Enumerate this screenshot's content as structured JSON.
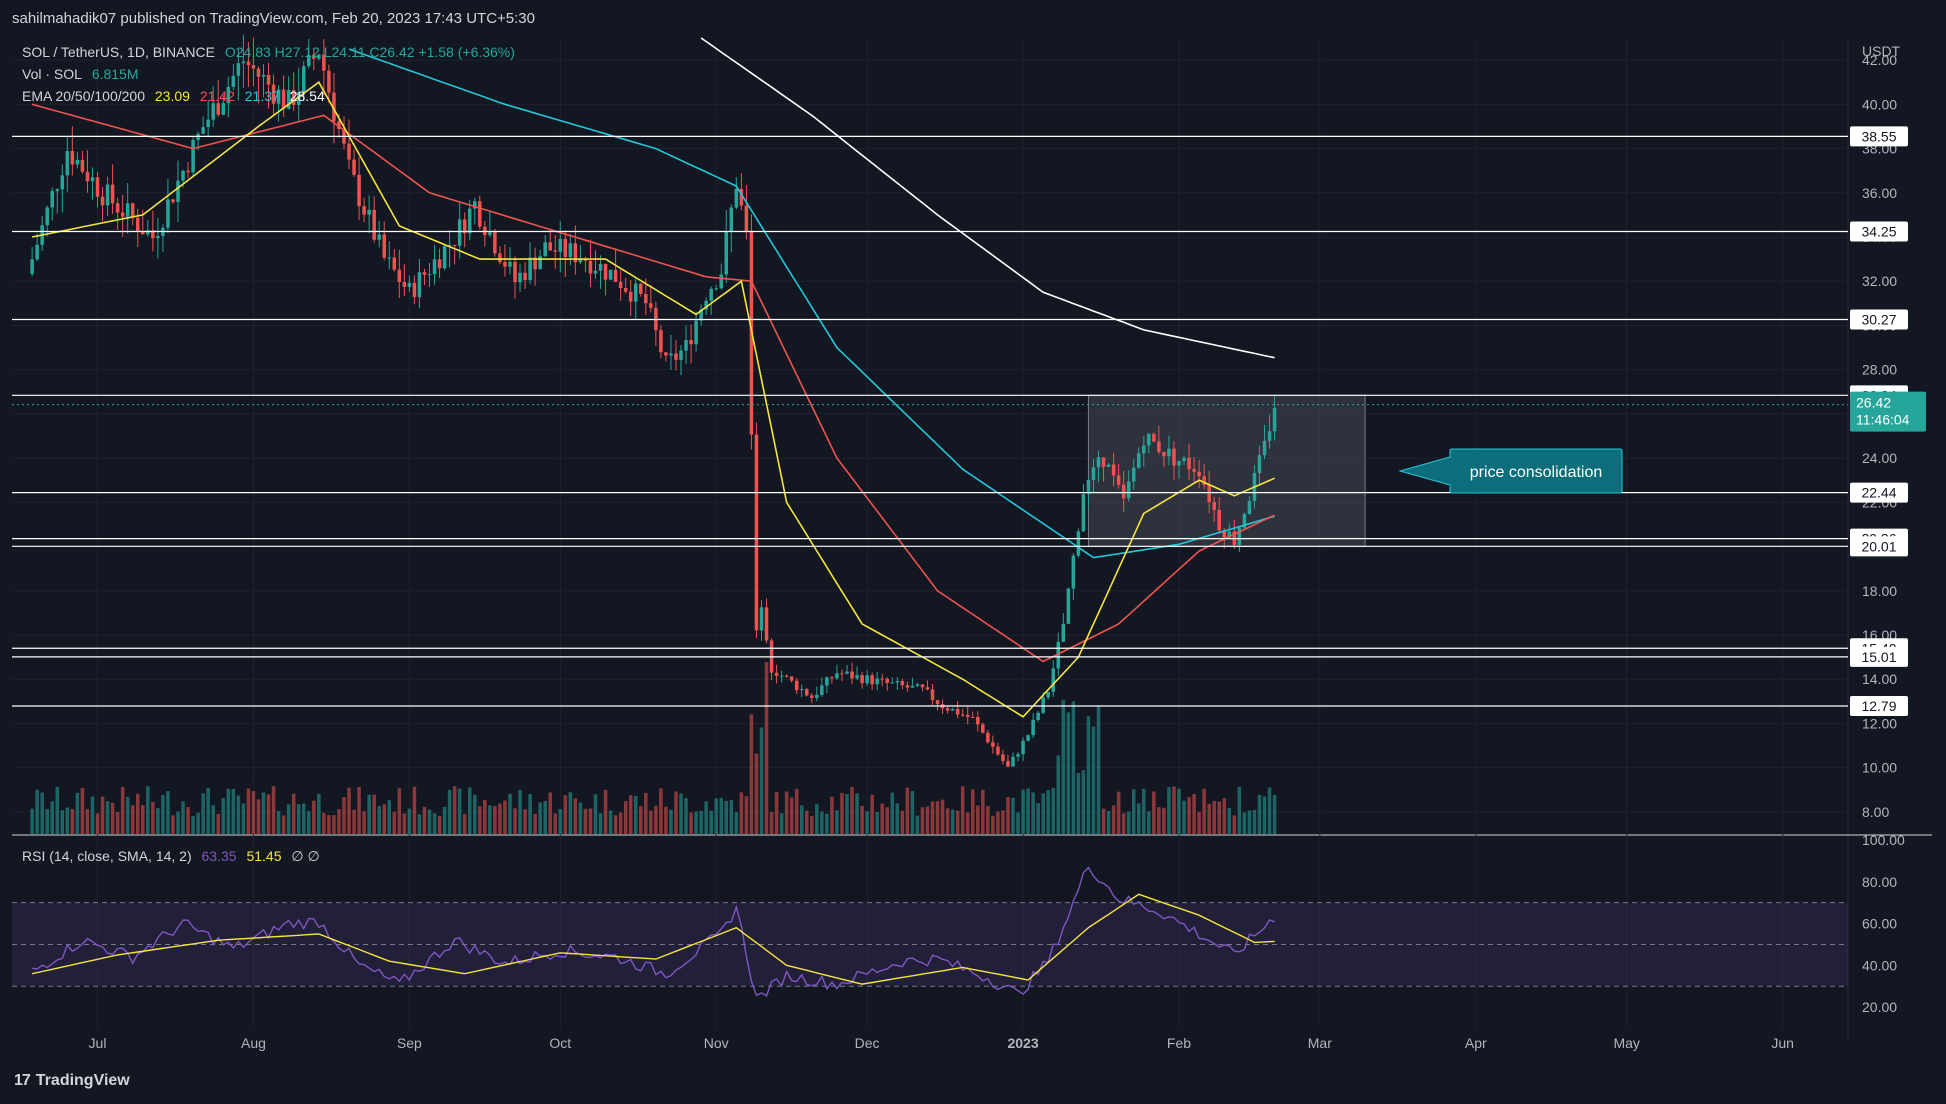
{
  "header": {
    "publisher": "sahilmahadik07 published on TradingView.com, Feb 20, 2023 17:43 UTC+5:30"
  },
  "footer": {
    "logo_text": "TradingView",
    "logo_mark": "17"
  },
  "legend": {
    "symbol": "SOL / TetherUS, 1D, BINANCE",
    "ohlc": "O24.83 H27.12 L24.11 C26.42 +1.58 (+6.36%)",
    "volume_label": "Vol · SOL",
    "volume_value": "6.815M",
    "ema_label": "EMA 20/50/100/200",
    "ema_values": [
      {
        "value": "23.09",
        "color": "#f5e53c"
      },
      {
        "value": "21.42",
        "color": "#ef5350"
      },
      {
        "value": "21.37",
        "color": "#26c6da"
      },
      {
        "value": "28.54",
        "color": "#ffffff"
      }
    ],
    "rsi_label": "RSI (14, close, SMA, 14, 2)",
    "rsi_value": "63.35",
    "rsi_sma": "51.45",
    "rsi_extra": "∅  ∅"
  },
  "colors": {
    "up": "#26a69a",
    "down": "#ef5350",
    "bg": "#131722",
    "grid": "#1e222d",
    "ema20": "#f5e53c",
    "ema50": "#ef5350",
    "ema100": "#26c6da",
    "ema200": "#ffffff",
    "rsi": "#7e57c2",
    "rsi_sma": "#f5e53c",
    "accent": "#0b6e7a"
  },
  "annotation": {
    "text": "price consolidation"
  },
  "chart_data": [
    {
      "type": "candlestick",
      "title": "SOL / TetherUS, 1D, BINANCE",
      "y_unit": "USDT",
      "ylim": [
        7,
        43
      ],
      "y_ticks": [
        "8.00",
        "10.00",
        "12.00",
        "14.00",
        "16.00",
        "18.00",
        "20.00",
        "22.00",
        "24.00",
        "26.00",
        "28.00",
        "30.00",
        "32.00",
        "34.00",
        "36.00",
        "38.00",
        "40.00",
        "42.00"
      ],
      "x_ticks": [
        "Jul",
        "Aug",
        "Sep",
        "Oct",
        "Nov",
        "Dec",
        "2023",
        "Feb",
        "Mar",
        "Apr",
        "May",
        "Jun"
      ],
      "horizontal_levels": [
        "38.55",
        "34.25",
        "30.27",
        "26.84",
        "22.44",
        "20.36",
        "20.01",
        "15.40",
        "15.01",
        "12.79"
      ],
      "last_price": "26.42",
      "countdown": "11:46:04",
      "consolidation_box": {
        "x_start": "2023-01-14",
        "x_end": "2023-03-10",
        "y_low": 20.0,
        "y_high": 26.84
      },
      "price_keypoints": [
        [
          "2022-06-18",
          33
        ],
        [
          "2022-06-25",
          38
        ],
        [
          "2022-07-02",
          36
        ],
        [
          "2022-07-12",
          34
        ],
        [
          "2022-07-22",
          39
        ],
        [
          "2022-07-30",
          42
        ],
        [
          "2022-08-08",
          40
        ],
        [
          "2022-08-14",
          42.5
        ],
        [
          "2022-08-20",
          37
        ],
        [
          "2022-08-27",
          33
        ],
        [
          "2022-09-01",
          31.5
        ],
        [
          "2022-09-10",
          34
        ],
        [
          "2022-09-14",
          35.5
        ],
        [
          "2022-09-22",
          32
        ],
        [
          "2022-09-28",
          33.5
        ],
        [
          "2022-10-05",
          33.2
        ],
        [
          "2022-10-12",
          32.2
        ],
        [
          "2022-10-18",
          31
        ],
        [
          "2022-10-22",
          28.2
        ],
        [
          "2022-10-26",
          29
        ],
        [
          "2022-10-30",
          31.5
        ],
        [
          "2022-11-02",
          32.5
        ],
        [
          "2022-11-05",
          36.5
        ],
        [
          "2022-11-07",
          34
        ],
        [
          "2022-11-08",
          25
        ],
        [
          "2022-11-09",
          16
        ],
        [
          "2022-11-10",
          17.5
        ],
        [
          "2022-11-12",
          14.5
        ],
        [
          "2022-11-20",
          13.2
        ],
        [
          "2022-11-25",
          14.3
        ],
        [
          "2022-12-05",
          13.8
        ],
        [
          "2022-12-12",
          13.5
        ],
        [
          "2022-12-16",
          12.8
        ],
        [
          "2022-12-22",
          12.2
        ],
        [
          "2022-12-29",
          10
        ],
        [
          "2023-01-02",
          11.5
        ],
        [
          "2023-01-06",
          13.5
        ],
        [
          "2023-01-09",
          16.5
        ],
        [
          "2023-01-13",
          22.5
        ],
        [
          "2023-01-17",
          24
        ],
        [
          "2023-01-21",
          22
        ],
        [
          "2023-01-25",
          25
        ],
        [
          "2023-01-31",
          24
        ],
        [
          "2023-02-05",
          23.5
        ],
        [
          "2023-02-09",
          21
        ],
        [
          "2023-02-12",
          20.3
        ],
        [
          "2023-02-15",
          22.3
        ],
        [
          "2023-02-18",
          24.5
        ],
        [
          "2023-02-20",
          26.42
        ]
      ],
      "ema_keypoints": {
        "ema20": [
          [
            "2022-06-18",
            34
          ],
          [
            "2022-07-10",
            35
          ],
          [
            "2022-08-02",
            39
          ],
          [
            "2022-08-14",
            41
          ],
          [
            "2022-08-30",
            34.5
          ],
          [
            "2022-09-15",
            33
          ],
          [
            "2022-10-10",
            33
          ],
          [
            "2022-10-28",
            30.5
          ],
          [
            "2022-11-06",
            32
          ],
          [
            "2022-11-15",
            22
          ],
          [
            "2022-11-30",
            16.5
          ],
          [
            "2022-12-20",
            14
          ],
          [
            "2023-01-01",
            12.3
          ],
          [
            "2023-01-12",
            15
          ],
          [
            "2023-01-25",
            21.5
          ],
          [
            "2023-02-05",
            23
          ],
          [
            "2023-02-12",
            22.3
          ],
          [
            "2023-02-20",
            23.09
          ]
        ],
        "ema50": [
          [
            "2022-06-18",
            40
          ],
          [
            "2022-07-20",
            38
          ],
          [
            "2022-08-15",
            39.5
          ],
          [
            "2022-09-05",
            36
          ],
          [
            "2022-10-01",
            34.2
          ],
          [
            "2022-10-30",
            32.2
          ],
          [
            "2022-11-08",
            32
          ],
          [
            "2022-11-25",
            24
          ],
          [
            "2022-12-15",
            18
          ],
          [
            "2023-01-05",
            14.8
          ],
          [
            "2023-01-20",
            16.5
          ],
          [
            "2023-02-05",
            19.8
          ],
          [
            "2023-02-20",
            21.42
          ]
        ],
        "ema100": [
          [
            "2022-08-20",
            42.5
          ],
          [
            "2022-09-20",
            40
          ],
          [
            "2022-10-20",
            38
          ],
          [
            "2022-11-05",
            36.3
          ],
          [
            "2022-11-25",
            29
          ],
          [
            "2022-12-20",
            23.5
          ],
          [
            "2023-01-15",
            19.5
          ],
          [
            "2023-02-01",
            20.1
          ],
          [
            "2023-02-20",
            21.37
          ]
        ],
        "ema200": [
          [
            "2022-10-29",
            43
          ],
          [
            "2022-11-20",
            39.5
          ],
          [
            "2022-12-15",
            35
          ],
          [
            "2023-01-05",
            31.5
          ],
          [
            "2023-01-25",
            29.8
          ],
          [
            "2023-02-20",
            28.54
          ]
        ]
      }
    },
    {
      "type": "line",
      "title": "RSI (14, close, SMA, 14, 2)",
      "ylim": [
        10,
        100
      ],
      "y_ticks": [
        "20.00",
        "40.00",
        "60.00",
        "80.00",
        "100.00"
      ],
      "bands": [
        30,
        50,
        70
      ],
      "rsi_keypoints": [
        [
          "2022-06-18",
          37
        ],
        [
          "2022-06-28",
          52
        ],
        [
          "2022-07-08",
          44
        ],
        [
          "2022-07-18",
          60
        ],
        [
          "2022-07-28",
          48
        ],
        [
          "2022-08-08",
          60
        ],
        [
          "2022-08-14",
          61
        ],
        [
          "2022-08-22",
          40
        ],
        [
          "2022-08-30",
          31
        ],
        [
          "2022-09-10",
          52
        ],
        [
          "2022-09-20",
          41
        ],
        [
          "2022-10-01",
          47
        ],
        [
          "2022-10-12",
          44
        ],
        [
          "2022-10-22",
          36
        ],
        [
          "2022-11-02",
          55
        ],
        [
          "2022-11-05",
          68
        ],
        [
          "2022-11-09",
          24
        ],
        [
          "2022-11-15",
          35
        ],
        [
          "2022-11-25",
          31
        ],
        [
          "2022-12-08",
          42
        ],
        [
          "2022-12-15",
          43
        ],
        [
          "2022-12-25",
          34
        ],
        [
          "2022-12-31",
          26
        ],
        [
          "2023-01-06",
          42
        ],
        [
          "2023-01-10",
          64
        ],
        [
          "2023-01-14",
          88
        ],
        [
          "2023-01-20",
          72
        ],
        [
          "2023-01-28",
          66
        ],
        [
          "2023-02-05",
          55
        ],
        [
          "2023-02-12",
          45
        ],
        [
          "2023-02-20",
          63.35
        ]
      ],
      "sma_keypoints": [
        [
          "2022-06-18",
          36
        ],
        [
          "2022-07-05",
          45
        ],
        [
          "2022-07-25",
          52
        ],
        [
          "2022-08-14",
          55
        ],
        [
          "2022-08-28",
          42
        ],
        [
          "2022-09-12",
          36
        ],
        [
          "2022-10-01",
          46
        ],
        [
          "2022-10-20",
          43
        ],
        [
          "2022-11-05",
          58
        ],
        [
          "2022-11-15",
          40
        ],
        [
          "2022-11-30",
          31
        ],
        [
          "2022-12-20",
          39
        ],
        [
          "2023-01-02",
          33
        ],
        [
          "2023-01-14",
          58
        ],
        [
          "2023-01-24",
          74
        ],
        [
          "2023-02-05",
          64
        ],
        [
          "2023-02-16",
          51
        ],
        [
          "2023-02-20",
          51.45
        ]
      ]
    }
  ]
}
